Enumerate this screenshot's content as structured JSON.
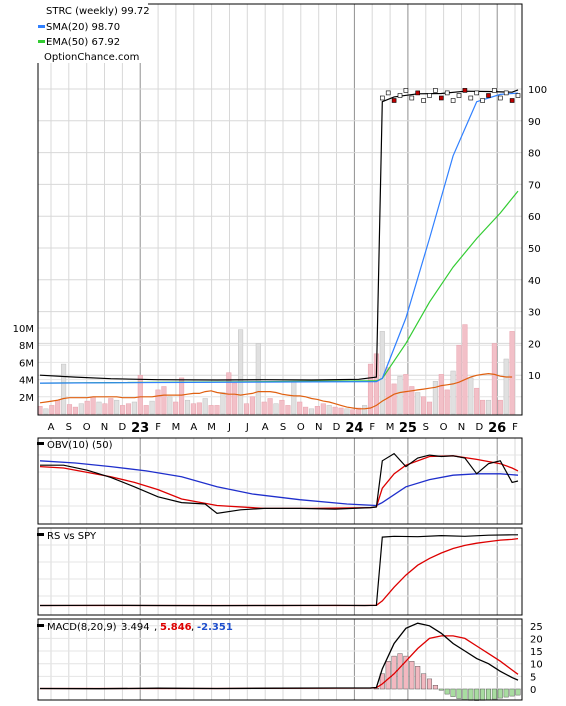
{
  "colors": {
    "price": "#000000",
    "candle_down": "#c00000",
    "sma": "#3080ff",
    "ema": "#33cc33",
    "volume_up": "#f2c0c8",
    "volume_down": "#e0e0e0",
    "volume_avg": "#e06010",
    "obv": "#000000",
    "obv_fast": "#dd0000",
    "obv_slow": "#1f2fcc",
    "rs": "#000000",
    "rs_avg": "#dd0000",
    "macd": "#000000",
    "signal": "#dd0000",
    "hist_pos": "#f2b8c0",
    "hist_neg": "#a8dca0"
  },
  "legend": {
    "title": "STRC (weekly) 99.72",
    "sma": "SMA(20) 98.70",
    "ema": "EMA(50) 67.92",
    "source": "OptionChance.com"
  },
  "chart_data": [
    {
      "type": "line",
      "title": "STRC (weekly) 99.72",
      "x_ticks": [
        "A",
        "S",
        "O",
        "N",
        "D",
        "23",
        "F",
        "M",
        "A",
        "M",
        "J",
        "J",
        "A",
        "S",
        "O",
        "N",
        "D",
        "24",
        "F",
        "M",
        "25",
        "S",
        "O",
        "N",
        "D",
        "26",
        "F"
      ],
      "y_ticks": [
        10,
        20,
        30,
        40,
        50,
        60,
        70,
        80,
        90,
        100
      ],
      "ylim": [
        0,
        104
      ],
      "series": [
        {
          "name": "SMA(20) 98.70",
          "x": [
            0,
            57,
            58,
            62,
            66,
            70,
            74,
            78,
            81
          ],
          "values": [
            7.5,
            8.0,
            9.0,
            28,
            53,
            79,
            96,
            98.3,
            98.7
          ]
        },
        {
          "name": "EMA(50) 67.92",
          "x": [
            0,
            57,
            58,
            62,
            66,
            70,
            74,
            78,
            81
          ],
          "values": [
            7.5,
            8.2,
            9.0,
            20,
            33,
            44,
            53,
            61,
            67.9
          ]
        }
      ],
      "price": {
        "x": [
          0,
          6,
          12,
          20,
          30,
          38,
          46,
          54,
          57,
          58,
          60,
          64,
          68,
          72,
          76,
          80,
          81
        ],
        "values": [
          10.0,
          9.4,
          8.9,
          8.6,
          8.5,
          8.6,
          8.5,
          8.7,
          9.4,
          96,
          97.5,
          98.5,
          98.6,
          99.3,
          99.2,
          99.0,
          99.72
        ]
      }
    },
    {
      "type": "bar",
      "title": "Volume",
      "y_ticks": [
        "2M",
        "4M",
        "6M",
        "8M",
        "10M"
      ],
      "ylim": [
        0,
        10.8
      ],
      "values": [
        0.9,
        0.6,
        1.0,
        1.6,
        5.8,
        1.1,
        0.8,
        1.2,
        1.5,
        2.0,
        1.4,
        1.2,
        1.8,
        1.6,
        1.0,
        1.2,
        1.4,
        4.5,
        1.0,
        1.5,
        2.8,
        3.2,
        2.0,
        1.4,
        4.2,
        1.6,
        1.2,
        1.3,
        1.8,
        1.0,
        1.0,
        2.5,
        4.8,
        3.6,
        9.8,
        1.2,
        2.0,
        8.2,
        1.4,
        1.8,
        1.2,
        1.6,
        1.0,
        3.8,
        1.4,
        0.8,
        0.6,
        0.9,
        1.2,
        1.0,
        0.8,
        0.7,
        0.6,
        0.5,
        0.7,
        1.0,
        5.8,
        7.0,
        9.6,
        5.4,
        3.5,
        4.4,
        4.6,
        3.2,
        2.5,
        2.0,
        1.4,
        3.8,
        4.6,
        2.8,
        5.0,
        8.0,
        10.4,
        4.2,
        3.0,
        1.6,
        1.6,
        8.2,
        1.6,
        6.4,
        9.6
      ],
      "avg_volume": [
        1.3,
        1.4,
        1.5,
        1.6,
        1.8,
        1.9,
        1.9,
        1.9,
        1.9,
        2.0,
        2.0,
        2.0,
        2.0,
        2.0,
        1.9,
        1.9,
        1.9,
        2.0,
        2.0,
        2.0,
        2.1,
        2.2,
        2.2,
        2.2,
        2.2,
        2.3,
        2.4,
        2.4,
        2.6,
        2.7,
        2.5,
        2.4,
        2.3,
        2.3,
        2.2,
        2.3,
        2.4,
        2.6,
        2.6,
        2.6,
        2.5,
        2.3,
        2.2,
        2.1,
        2.1,
        2.0,
        1.8,
        1.7,
        1.5,
        1.4,
        1.2,
        1.0,
        0.8,
        0.7,
        0.6,
        0.6,
        0.7,
        1.0,
        1.5,
        1.9,
        2.3,
        2.5,
        2.6,
        2.7,
        2.8,
        2.9,
        3.0,
        3.1,
        3.3,
        3.4,
        3.5,
        3.7,
        4.0,
        4.3,
        4.5,
        4.6,
        4.7,
        4.6,
        4.4,
        4.3,
        4.3
      ]
    },
    {
      "type": "line",
      "title": "OBV(10) (50)",
      "series": [
        {
          "x": [
            0,
            4,
            8,
            12,
            16,
            20,
            24,
            28,
            30,
            34,
            38,
            44,
            50,
            56,
            57,
            58,
            60,
            62,
            64,
            66,
            68,
            70,
            72,
            74,
            76,
            78,
            80,
            81
          ],
          "values": [
            72,
            72,
            65,
            55,
            42,
            28,
            20,
            18,
            5,
            10,
            12,
            12,
            11,
            13,
            14,
            78,
            88,
            70,
            82,
            86,
            84,
            85,
            82,
            60,
            74,
            78,
            48,
            50
          ]
        },
        {
          "name": "10",
          "x": [
            0,
            4,
            8,
            12,
            16,
            20,
            24,
            30,
            38,
            46,
            56,
            57,
            58,
            60,
            62,
            66,
            70,
            74,
            78,
            80,
            81
          ],
          "values": [
            70,
            68,
            62,
            56,
            48,
            38,
            25,
            16,
            12,
            12,
            13,
            14,
            40,
            60,
            72,
            84,
            85,
            80,
            74,
            68,
            64
          ]
        },
        {
          "name": "50",
          "x": [
            0,
            6,
            12,
            18,
            24,
            30,
            36,
            44,
            52,
            57,
            58,
            62,
            66,
            70,
            74,
            78,
            81
          ],
          "values": [
            78,
            75,
            70,
            64,
            56,
            42,
            32,
            24,
            18,
            16,
            20,
            42,
            52,
            58,
            60,
            60,
            58
          ]
        }
      ]
    },
    {
      "type": "line",
      "title": "RS vs SPY",
      "series": [
        {
          "x": [
            0,
            10,
            20,
            30,
            40,
            50,
            55,
            57,
            58,
            60,
            64,
            68,
            72,
            76,
            80,
            81
          ],
          "values": [
            2,
            2.2,
            2,
            1.8,
            2,
            2.3,
            2,
            2.2,
            92,
            93,
            92.5,
            94,
            93,
            94.5,
            95,
            95
          ]
        },
        {
          "name": "avg",
          "x": [
            0,
            20,
            40,
            55,
            57,
            58,
            60,
            62,
            64,
            66,
            68,
            70,
            72,
            74,
            76,
            78,
            80,
            81
          ],
          "values": [
            2,
            2,
            2,
            2,
            2.2,
            8,
            26,
            42,
            55,
            64,
            71,
            77,
            81,
            84,
            86,
            88,
            89,
            90
          ]
        }
      ]
    },
    {
      "type": "line",
      "title": "MACD(8,20,9) 3.494, 5.846, -2.351",
      "labels": {
        "name": "MACD(8,20,9)",
        "macd": "3.494",
        "signal": "5.846",
        "hist": "-2.351"
      },
      "y_ticks": [
        0,
        5,
        10,
        15,
        20,
        25
      ],
      "ylim": [
        -3,
        28
      ],
      "series": [
        {
          "name": "MACD",
          "x": [
            0,
            10,
            20,
            30,
            40,
            50,
            56,
            57,
            58,
            60,
            62,
            64,
            66,
            68,
            70,
            72,
            74,
            76,
            78,
            80,
            81
          ],
          "values": [
            0.2,
            0.1,
            0.3,
            0.2,
            0.3,
            0.4,
            0.4,
            0.6,
            8,
            18,
            24,
            26,
            25,
            22,
            18,
            15,
            12,
            10,
            7,
            4.5,
            3.5
          ]
        },
        {
          "name": "Signal",
          "x": [
            0,
            30,
            56,
            57,
            58,
            60,
            62,
            64,
            66,
            68,
            70,
            72,
            74,
            76,
            78,
            80,
            81
          ],
          "values": [
            0.2,
            0.2,
            0.4,
            0.5,
            2,
            6,
            11,
            16,
            20,
            21,
            21,
            20,
            17,
            14,
            11,
            7.5,
            5.8
          ]
        },
        {
          "name": "Histogram",
          "x": [
            57,
            58,
            59,
            60,
            61,
            62,
            63,
            64,
            65,
            66,
            67,
            68,
            69,
            70,
            71,
            72,
            73,
            74,
            75,
            76,
            77,
            78,
            79,
            80,
            81
          ],
          "values": [
            0.3,
            6,
            11,
            13,
            14,
            13,
            11,
            9,
            6,
            4,
            1.5,
            -0.5,
            -2,
            -3,
            -3.8,
            -4.2,
            -4.5,
            -4.6,
            -4.5,
            -4.3,
            -4,
            -3.6,
            -3.2,
            -2.8,
            -2.4
          ]
        }
      ]
    }
  ]
}
